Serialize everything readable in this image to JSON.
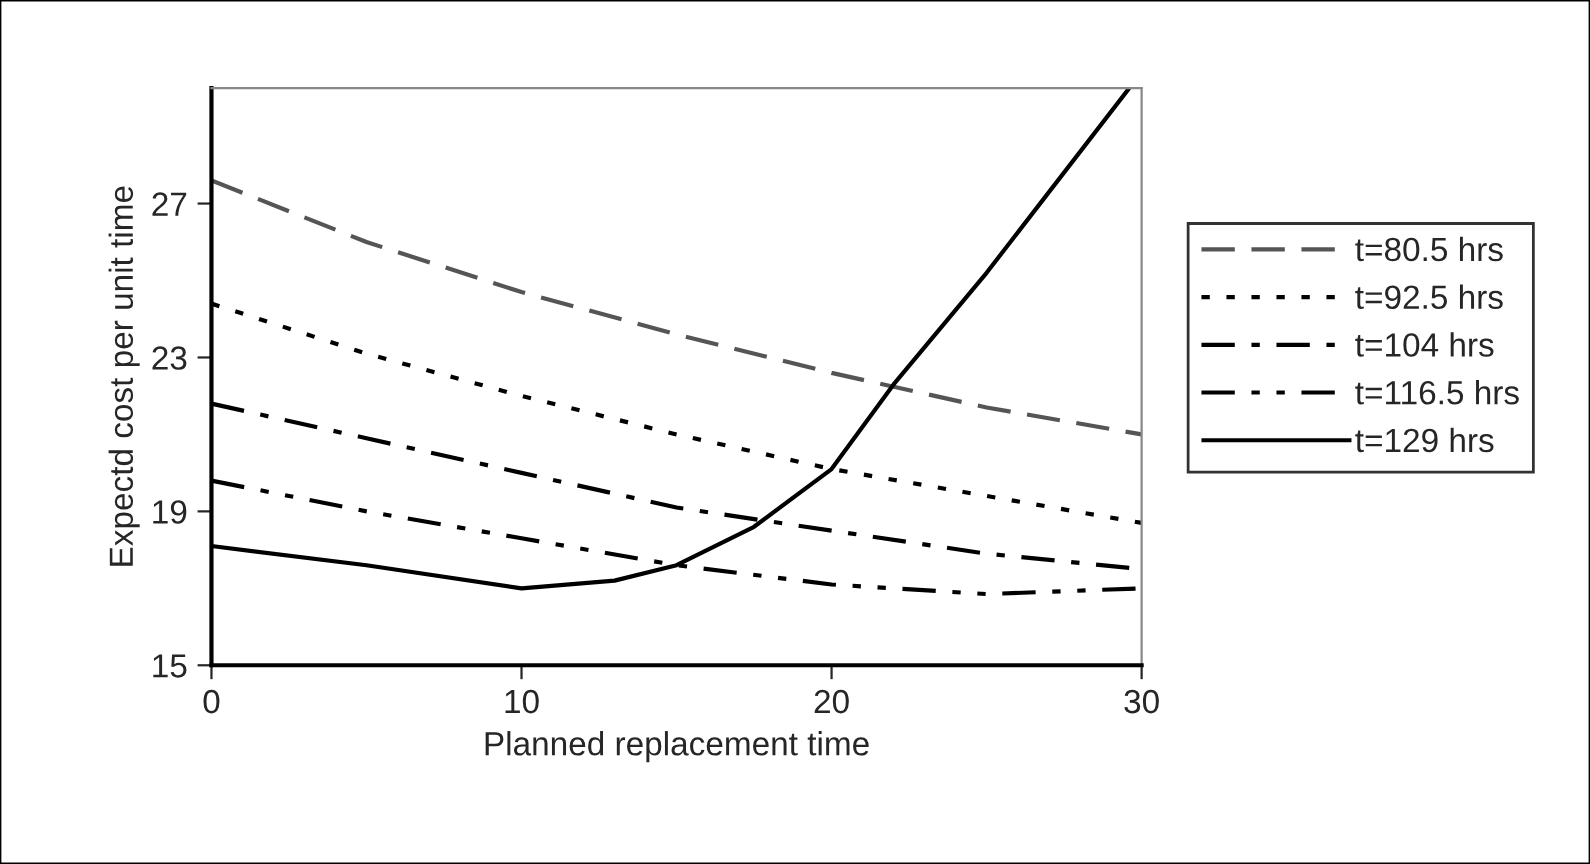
{
  "chart_data": {
    "type": "line",
    "xlabel": "Planned replacement time",
    "ylabel": "Expectd cost per unit time",
    "xlim": [
      0,
      30
    ],
    "ylim": [
      15,
      30
    ],
    "xticks": [
      0,
      10,
      20,
      30
    ],
    "yticks": [
      15,
      19,
      23,
      27
    ],
    "grid": false,
    "legend": "right",
    "marker": "none",
    "series": [
      {
        "name": "t=80.5 hrs",
        "color": "#555555",
        "line_style": "dashed",
        "x": [
          0,
          5,
          10,
          15,
          20,
          25,
          30
        ],
        "values": [
          27.6,
          26.0,
          24.7,
          23.6,
          22.6,
          21.7,
          21.0
        ]
      },
      {
        "name": "t=92.5 hrs",
        "color": "#000000",
        "line_style": "dotted",
        "x": [
          0,
          5,
          10,
          15,
          20,
          25,
          30
        ],
        "values": [
          24.4,
          23.1,
          22.0,
          21.0,
          20.1,
          19.4,
          18.7
        ]
      },
      {
        "name": "t=104 hrs",
        "color": "#000000",
        "line_style": "dashdot",
        "x": [
          0,
          5,
          10,
          15,
          20,
          25,
          30
        ],
        "values": [
          21.8,
          20.9,
          20.0,
          19.1,
          18.5,
          17.9,
          17.5
        ]
      },
      {
        "name": "t=116.5 hrs",
        "color": "#000000",
        "line_style": "dashdotdot",
        "x": [
          0,
          5,
          10,
          15,
          20,
          25,
          30
        ],
        "values": [
          19.8,
          19.0,
          18.3,
          17.6,
          17.1,
          16.85,
          17.0
        ]
      },
      {
        "name": "t=129 hrs",
        "color": "#000000",
        "line_style": "solid",
        "x": [
          0,
          5,
          10,
          13,
          15,
          17.5,
          20,
          22,
          25,
          29.6
        ],
        "values": [
          18.1,
          17.6,
          17.0,
          17.2,
          17.6,
          18.6,
          20.1,
          22.3,
          25.2,
          30
        ]
      }
    ]
  }
}
